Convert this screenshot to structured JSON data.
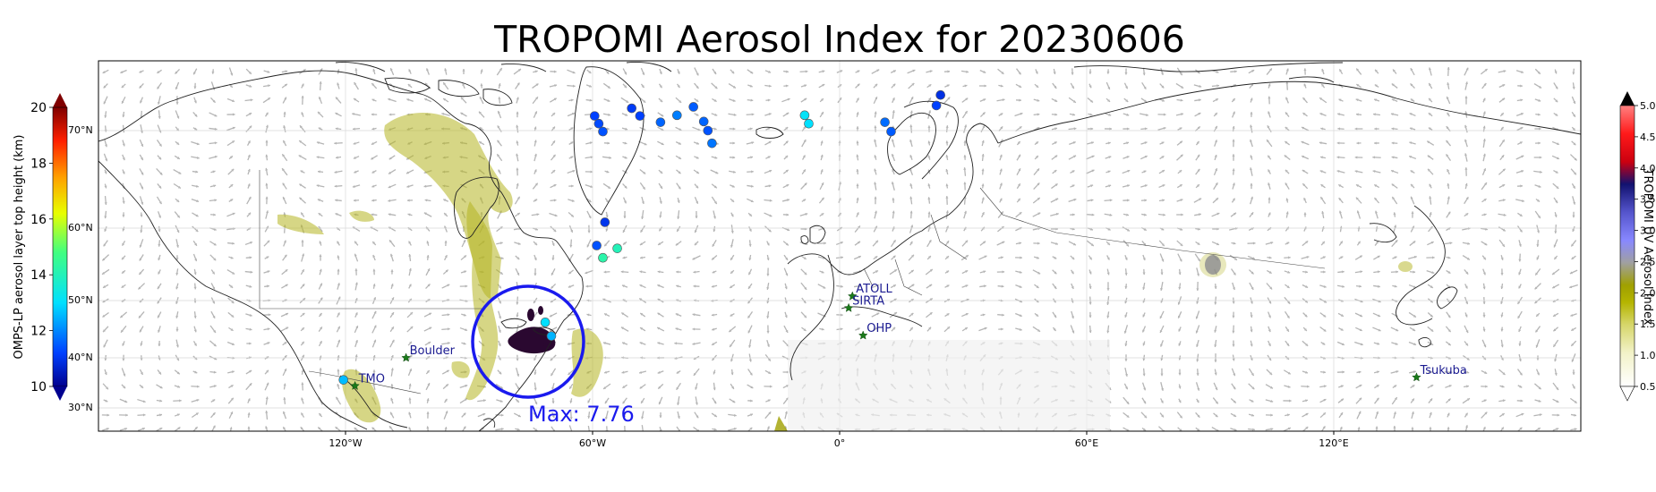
{
  "title": "TROPOMI Aerosol Index for 20230606",
  "left_colorbar": {
    "label": "OMPS-LP aerosol layer top height (km)",
    "ticks": [
      "10",
      "12",
      "14",
      "16",
      "18",
      "20"
    ],
    "range": [
      10,
      20
    ]
  },
  "right_colorbar": {
    "label": "TROPOMI UV Aerosol Index",
    "ticks": [
      "0.5",
      "1.0",
      "1.5",
      "2.0",
      "2.5",
      "3.0",
      "3.5",
      "4.0",
      "4.5",
      "5.0"
    ],
    "range": [
      0.5,
      5.0
    ]
  },
  "lat_labels": [
    "70°N",
    "60°N",
    "50°N",
    "40°N",
    "30°N"
  ],
  "lon_labels": [
    "120°W",
    "60°W",
    "0°",
    "60°E",
    "120°E"
  ],
  "stations": [
    {
      "name": "TMO",
      "lon": -117.7,
      "lat": 34.4
    },
    {
      "name": "Boulder",
      "lon": -105.3,
      "lat": 40.0
    },
    {
      "name": "ATOLL",
      "lon": 3.1,
      "lat": 50.6
    },
    {
      "name": "SIRTA",
      "lon": 2.2,
      "lat": 48.7
    },
    {
      "name": "OHP",
      "lon": 5.7,
      "lat": 43.9
    },
    {
      "name": "Tsukuba",
      "lon": 140.1,
      "lat": 36.1
    }
  ],
  "max_marker": {
    "label": "Max: 7.76",
    "lon": -75,
    "lat": 45
  },
  "colors": {
    "circle": "#1a1aee",
    "station_marker": "#1a7a1a",
    "station_label": "#1a1a90",
    "coast": "#222222",
    "aerosol_low": "#c8c832",
    "aerosol_mid": "#a0a000"
  },
  "omps_points": [
    {
      "lon": -59.5,
      "lat": 72.1,
      "h": 11.2
    },
    {
      "lon": -58.5,
      "lat": 71.0,
      "h": 11.3
    },
    {
      "lon": -57.5,
      "lat": 69.9,
      "h": 11.4
    },
    {
      "lon": -50.5,
      "lat": 73.2,
      "h": 11.1
    },
    {
      "lon": -48.5,
      "lat": 72.1,
      "h": 11.2
    },
    {
      "lon": -43.5,
      "lat": 71.2,
      "h": 11.6
    },
    {
      "lon": -39.5,
      "lat": 72.2,
      "h": 11.9
    },
    {
      "lon": -35.5,
      "lat": 73.4,
      "h": 11.5
    },
    {
      "lon": -33.0,
      "lat": 71.3,
      "h": 11.6
    },
    {
      "lon": -32.0,
      "lat": 70.0,
      "h": 11.4
    },
    {
      "lon": -31.0,
      "lat": 68.7,
      "h": 11.8
    },
    {
      "lon": -8.5,
      "lat": 72.2,
      "h": 13.1
    },
    {
      "lon": -7.5,
      "lat": 71.0,
      "h": 13.0
    },
    {
      "lon": 11.0,
      "lat": 71.2,
      "h": 11.7
    },
    {
      "lon": 12.5,
      "lat": 69.9,
      "h": 11.5
    },
    {
      "lon": 23.5,
      "lat": 73.6,
      "h": 11.2
    },
    {
      "lon": 24.5,
      "lat": 75.1,
      "h": 10.9
    },
    {
      "lon": -57.0,
      "lat": 60.6,
      "h": 11.0
    },
    {
      "lon": -59.0,
      "lat": 57.6,
      "h": 11.4
    },
    {
      "lon": -54.0,
      "lat": 57.2,
      "h": 14.0
    },
    {
      "lon": -57.5,
      "lat": 55.9,
      "h": 14.2
    },
    {
      "lon": -71.5,
      "lat": 46.2,
      "h": 13.0
    },
    {
      "lon": -70.0,
      "lat": 43.8,
      "h": 12.5
    },
    {
      "lon": -120.5,
      "lat": 35.6,
      "h": 12.6
    }
  ]
}
